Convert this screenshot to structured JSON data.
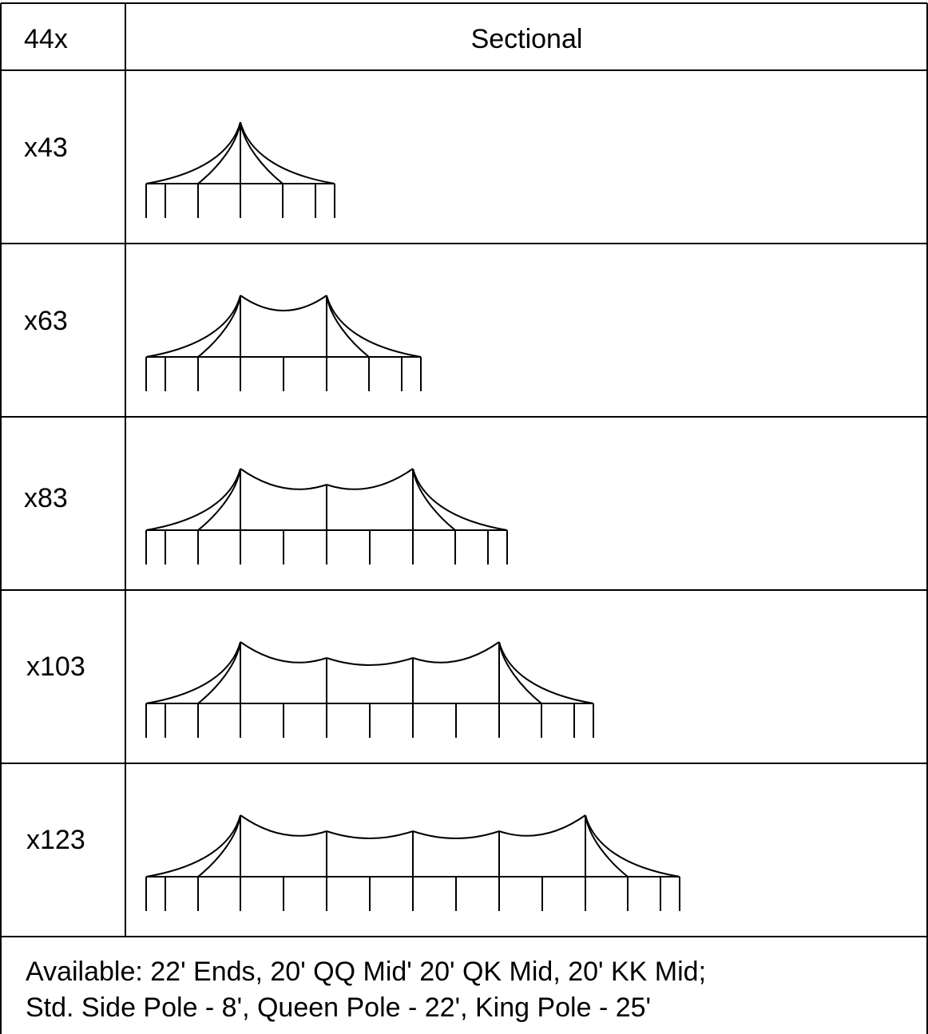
{
  "header": {
    "left": "44x",
    "right": "Sectional"
  },
  "rows": [
    {
      "label": "x43",
      "mid_sections": 0
    },
    {
      "label": "x63",
      "mid_sections": 1
    },
    {
      "label": "x83",
      "mid_sections": 2
    },
    {
      "label": "x103",
      "mid_sections": 3
    },
    {
      "label": "x123",
      "mid_sections": 4
    }
  ],
  "footer": {
    "line1": "Available: 22' Ends, 20' QQ Mid' 20' QK Mid, 20' KK Mid;",
    "line2": "Std. Side Pole - 8', Queen Pole - 22', King Pole - 25'"
  }
}
